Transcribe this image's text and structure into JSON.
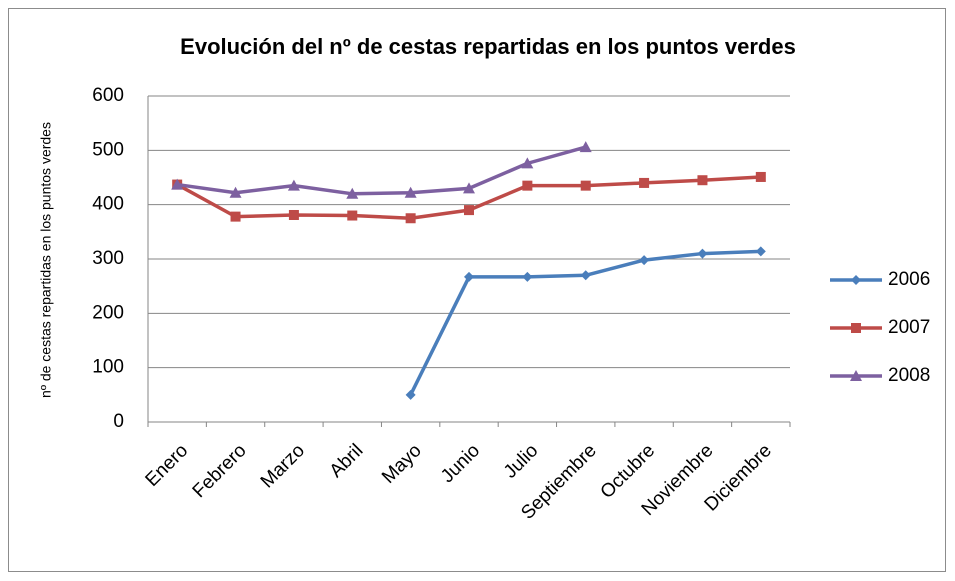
{
  "chart_data": {
    "type": "line",
    "title": "Evolución del nº de cestas repartidas en los puntos verdes",
    "y_label": "nº de cestas repartidas en los puntos verdes",
    "categories": [
      "Enero",
      "Febrero",
      "Marzo",
      "Abril",
      "Mayo",
      "Junio",
      "Julio",
      "Septiembre",
      "Octubre",
      "Noviembre",
      "Diciembre"
    ],
    "series": [
      {
        "name": "2006",
        "color": "#4a7ebb",
        "marker": "diamond",
        "values": [
          null,
          null,
          null,
          null,
          50,
          267,
          267,
          270,
          298,
          310,
          314
        ]
      },
      {
        "name": "2007",
        "color": "#be4b48",
        "marker": "square",
        "values": [
          437,
          378,
          381,
          380,
          375,
          390,
          435,
          435,
          440,
          445,
          451
        ]
      },
      {
        "name": "2008",
        "color": "#7d60a0",
        "marker": "triangle",
        "values": [
          437,
          422,
          435,
          420,
          422,
          430,
          476,
          506,
          null,
          null,
          null
        ]
      }
    ],
    "ylim": [
      0,
      600
    ],
    "yticks": [
      0,
      100,
      200,
      300,
      400,
      500,
      600
    ],
    "grid": true,
    "legend": "right"
  }
}
